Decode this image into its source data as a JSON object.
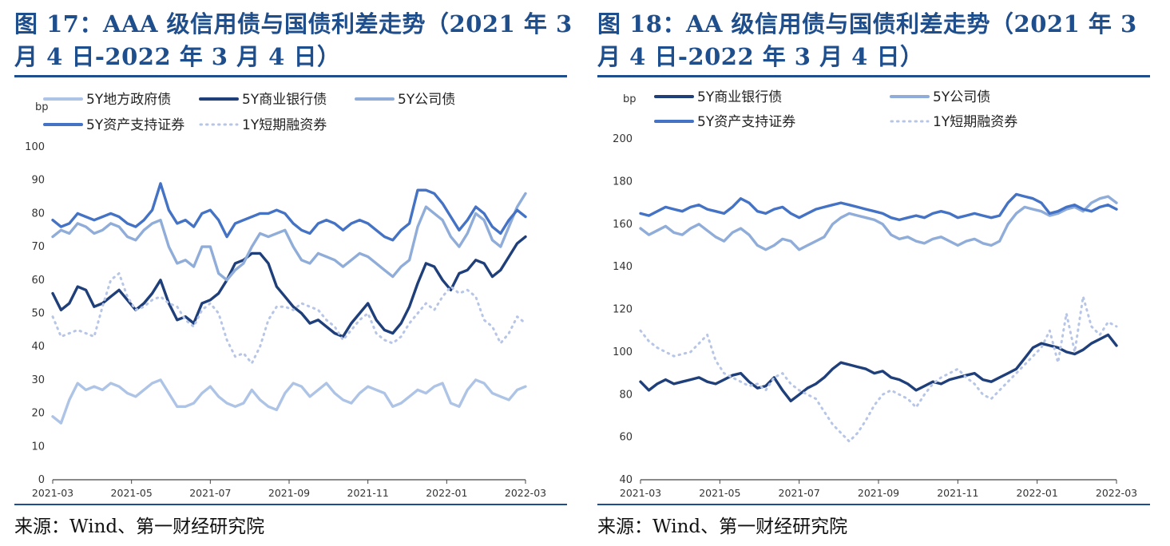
{
  "figures": [
    {
      "title": "图 17：AAA 级信用债与国债利差走势（2021 年 3 月 4 日-2022 年 3 月 4 日）",
      "source": "来源：Wind、第一财经研究院",
      "chart_data": {
        "type": "line",
        "ylabel": "bp",
        "ylim": [
          0,
          100
        ],
        "yticks": [
          "0",
          "10",
          "20",
          "30",
          "40",
          "50",
          "60",
          "70",
          "80",
          "90",
          "100"
        ],
        "xticks": [
          "2021-03",
          "2021-05",
          "2021-07",
          "2021-09",
          "2021-11",
          "2022-01",
          "2022-03"
        ],
        "legend": [
          "5Y地方政府债",
          "5Y商业银行债",
          "5Y公司债",
          "5Y资产支持证券",
          "1Y短期融资券"
        ],
        "series": [
          {
            "name": "5Y地方政府债",
            "color": "#aec4e6",
            "dash": false,
            "values": [
              19,
              17,
              24,
              29,
              27,
              28,
              27,
              29,
              28,
              26,
              25,
              27,
              29,
              30,
              26,
              22,
              22,
              23,
              26,
              28,
              25,
              23,
              22,
              23,
              27,
              24,
              22,
              21,
              26,
              29,
              28,
              25,
              27,
              29,
              26,
              24,
              23,
              26,
              28,
              27,
              26,
              22,
              23,
              25,
              27,
              26,
              28,
              29,
              23,
              22,
              27,
              30,
              29,
              26,
              25,
              24,
              27,
              28
            ]
          },
          {
            "name": "5Y商业银行债",
            "color": "#1f3f7a",
            "dash": false,
            "values": [
              56,
              51,
              53,
              58,
              57,
              52,
              53,
              55,
              57,
              54,
              51,
              53,
              56,
              60,
              53,
              48,
              49,
              47,
              53,
              54,
              56,
              60,
              65,
              66,
              68,
              68,
              65,
              58,
              55,
              52,
              50,
              47,
              48,
              46,
              44,
              43,
              47,
              50,
              53,
              48,
              45,
              44,
              47,
              52,
              59,
              65,
              64,
              60,
              57,
              62,
              63,
              66,
              65,
              61,
              63,
              67,
              71,
              73
            ]
          },
          {
            "name": "5Y公司债",
            "color": "#8fadd8",
            "dash": false,
            "values": [
              73,
              75,
              74,
              77,
              76,
              74,
              75,
              77,
              76,
              73,
              72,
              75,
              77,
              78,
              70,
              65,
              66,
              64,
              70,
              70,
              62,
              60,
              63,
              65,
              70,
              74,
              73,
              74,
              75,
              70,
              66,
              65,
              68,
              67,
              66,
              64,
              66,
              68,
              67,
              65,
              63,
              61,
              64,
              66,
              76,
              82,
              80,
              78,
              73,
              70,
              74,
              80,
              78,
              72,
              70,
              76,
              82,
              86
            ]
          },
          {
            "name": "5Y资产支持证券",
            "color": "#4472c4",
            "dash": false,
            "values": [
              78,
              76,
              77,
              80,
              79,
              78,
              79,
              80,
              79,
              77,
              76,
              78,
              81,
              89,
              81,
              77,
              78,
              76,
              80,
              81,
              78,
              73,
              77,
              78,
              79,
              80,
              80,
              81,
              80,
              77,
              75,
              74,
              77,
              78,
              77,
              75,
              77,
              78,
              77,
              75,
              73,
              72,
              75,
              77,
              87,
              87,
              86,
              83,
              79,
              75,
              78,
              82,
              80,
              76,
              74,
              78,
              81,
              79
            ]
          },
          {
            "name": "1Y短期融资券",
            "color": "#b7c5e6",
            "dash": true,
            "values": [
              49,
              43,
              44,
              45,
              44,
              43,
              52,
              60,
              62,
              55,
              51,
              52,
              54,
              55,
              53,
              52,
              48,
              46,
              51,
              53,
              50,
              42,
              37,
              38,
              35,
              40,
              48,
              52,
              52,
              51,
              53,
              52,
              51,
              48,
              46,
              42,
              45,
              48,
              50,
              44,
              42,
              41,
              43,
              47,
              50,
              53,
              51,
              55,
              58,
              56,
              57,
              55,
              48,
              46,
              41,
              44,
              49,
              47
            ]
          }
        ]
      }
    },
    {
      "title": "图 18：AA 级信用债与国债利差走势（2021 年 3 月 4 日-2022 年 3 月 4 日）",
      "source": "来源：Wind、第一财经研究院",
      "chart_data": {
        "type": "line",
        "ylabel": "bp",
        "ylim": [
          40,
          200
        ],
        "yticks": [
          "40",
          "60",
          "80",
          "100",
          "120",
          "140",
          "160",
          "180",
          "200"
        ],
        "xticks": [
          "2021-03",
          "2021-05",
          "2021-07",
          "2021-09",
          "2021-11",
          "2022-01",
          "2022-03"
        ],
        "legend": [
          "5Y商业银行债",
          "5Y公司债",
          "5Y资产支持证券",
          "1Y短期融资券"
        ],
        "series": [
          {
            "name": "5Y商业银行债",
            "color": "#1f3f7a",
            "dash": false,
            "values": [
              86,
              82,
              85,
              87,
              85,
              86,
              87,
              88,
              86,
              85,
              87,
              89,
              90,
              86,
              83,
              84,
              88,
              82,
              77,
              80,
              83,
              85,
              88,
              92,
              95,
              94,
              93,
              92,
              90,
              91,
              88,
              87,
              85,
              82,
              84,
              86,
              85,
              87,
              88,
              89,
              90,
              87,
              86,
              88,
              90,
              92,
              97,
              102,
              104,
              103,
              102,
              100,
              99,
              101,
              104,
              106,
              108,
              103
            ]
          },
          {
            "name": "5Y公司债",
            "color": "#8fadd8",
            "dash": false,
            "values": [
              158,
              155,
              157,
              159,
              156,
              155,
              158,
              160,
              157,
              154,
              152,
              156,
              158,
              155,
              150,
              148,
              150,
              153,
              152,
              148,
              150,
              152,
              154,
              160,
              163,
              165,
              164,
              163,
              162,
              160,
              155,
              153,
              154,
              152,
              151,
              153,
              154,
              152,
              150,
              152,
              153,
              151,
              150,
              152,
              160,
              165,
              168,
              167,
              166,
              164,
              165,
              167,
              168,
              166,
              170,
              172,
              173,
              170
            ]
          },
          {
            "name": "5Y资产支持证券",
            "color": "#4472c4",
            "dash": false,
            "values": [
              165,
              164,
              166,
              168,
              167,
              166,
              168,
              169,
              167,
              166,
              165,
              168,
              172,
              170,
              166,
              165,
              167,
              168,
              165,
              163,
              165,
              167,
              168,
              169,
              170,
              169,
              168,
              167,
              166,
              165,
              163,
              162,
              163,
              164,
              163,
              165,
              166,
              165,
              163,
              164,
              165,
              164,
              163,
              164,
              170,
              174,
              173,
              172,
              170,
              165,
              166,
              168,
              169,
              167,
              166,
              168,
              169,
              167
            ]
          },
          {
            "name": "1Y短期融资券",
            "color": "#b7c5e6",
            "dash": true,
            "values": [
              110,
              105,
              102,
              100,
              98,
              99,
              100,
              104,
              108,
              96,
              90,
              88,
              86,
              84,
              85,
              82,
              88,
              90,
              85,
              82,
              80,
              78,
              72,
              66,
              62,
              58,
              62,
              68,
              75,
              80,
              82,
              80,
              78,
              74,
              80,
              85,
              88,
              90,
              92,
              88,
              85,
              80,
              78,
              82,
              86,
              90,
              94,
              98,
              102,
              110,
              95,
              118,
              100,
              126,
              112,
              108,
              114,
              112
            ]
          }
        ]
      }
    }
  ]
}
